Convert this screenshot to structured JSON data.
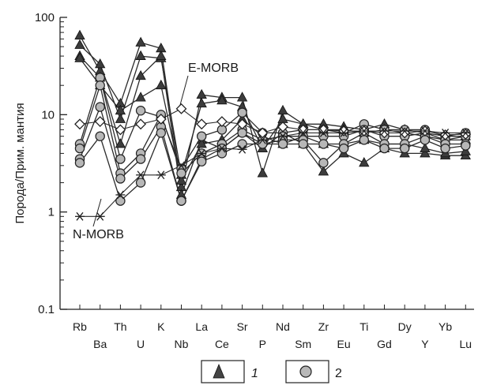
{
  "chart_data": {
    "type": "line",
    "title": "",
    "xlabel": "",
    "ylabel": "Порода/Прим. мантия",
    "yscale": "log",
    "ylim": [
      0.1,
      100
    ],
    "y_ticks": [
      {
        "value": 0.1,
        "label": "0.1"
      },
      {
        "value": 1,
        "label": "1"
      },
      {
        "value": 10,
        "label": "10"
      },
      {
        "value": 100,
        "label": "100"
      }
    ],
    "categories": [
      "Rb",
      "Ba",
      "Th",
      "U",
      "K",
      "Nb",
      "La",
      "Ce",
      "Sr",
      "P",
      "Nd",
      "Sm",
      "Zr",
      "Eu",
      "Ti",
      "Gd",
      "Dy",
      "Y",
      "Yb",
      "Lu"
    ],
    "grid": false,
    "legend_position": "bottom",
    "legend": [
      {
        "label": "1",
        "marker": "triangle"
      },
      {
        "label": "2",
        "marker": "circle"
      }
    ],
    "annotations": [
      {
        "text": "E-MORB",
        "series": "E-MORB"
      },
      {
        "text": "N-MORB",
        "series": "N-MORB"
      }
    ],
    "series": [
      {
        "marker": "triangle",
        "values": [
          65,
          28,
          13,
          55,
          48,
          1.8,
          16,
          15,
          15,
          2.5,
          11,
          8,
          8,
          7.5,
          7,
          8,
          7,
          6.5,
          6,
          6
        ]
      },
      {
        "marker": "triangle",
        "values": [
          52,
          33,
          9,
          40,
          38,
          2.4,
          13,
          14,
          12,
          4.5,
          9,
          8,
          7,
          7,
          6.5,
          7,
          6.5,
          6,
          5.5,
          5.5
        ]
      },
      {
        "marker": "triangle",
        "values": [
          40,
          24,
          5,
          25,
          40,
          1.5,
          5.5,
          4.5,
          6.5,
          4.5,
          6.5,
          5,
          2.6,
          4,
          3.2,
          4.5,
          4,
          4,
          3.8,
          3.8
        ]
      },
      {
        "marker": "triangle",
        "values": [
          38,
          20,
          11,
          15,
          20,
          2.1,
          5,
          5.5,
          9,
          6,
          5,
          6,
          5,
          5,
          5.5,
          5,
          5,
          4.5,
          4,
          4.2
        ]
      },
      {
        "marker": "circle",
        "values": [
          5,
          24,
          3.5,
          11,
          9.5,
          2.8,
          6,
          7,
          10.5,
          6.5,
          6.5,
          7,
          7,
          6.5,
          8,
          7,
          7,
          7,
          6,
          6.5
        ]
      },
      {
        "marker": "circle",
        "values": [
          4.5,
          20,
          2.5,
          4,
          10,
          2.5,
          4,
          5,
          7,
          5.5,
          6,
          6,
          6,
          6,
          7,
          6,
          6,
          6.5,
          5.5,
          6
        ]
      },
      {
        "marker": "circle",
        "values": [
          3.5,
          12,
          2.2,
          3.5,
          7.5,
          1.3,
          3.5,
          4.5,
          6.5,
          5,
          5.5,
          5.5,
          3.2,
          5,
          6.5,
          5,
          5,
          6,
          5,
          5
        ]
      },
      {
        "marker": "circle",
        "values": [
          3.2,
          6,
          1.3,
          2,
          6.5,
          1.3,
          3.3,
          4,
          5,
          5,
          5,
          5,
          5,
          4.5,
          5.5,
          4.5,
          4.5,
          5.5,
          4.5,
          4.8
        ]
      },
      {
        "name": "E-MORB",
        "marker": "diamond",
        "values": [
          8,
          8.5,
          7,
          8,
          9,
          11.5,
          8,
          8.5,
          8,
          6.5,
          7.5,
          7,
          7,
          6.8,
          6.8,
          6.5,
          6.5,
          6.8,
          6.2,
          6.3
        ]
      },
      {
        "name": "N-MORB",
        "marker": "asterisk",
        "values": [
          0.9,
          0.9,
          1.5,
          2.4,
          2.4,
          3,
          4,
          4.5,
          4.4,
          5.5,
          6,
          6.5,
          6.5,
          6.5,
          6.8,
          6.8,
          6.8,
          6.8,
          6.5,
          6.5
        ]
      }
    ]
  }
}
